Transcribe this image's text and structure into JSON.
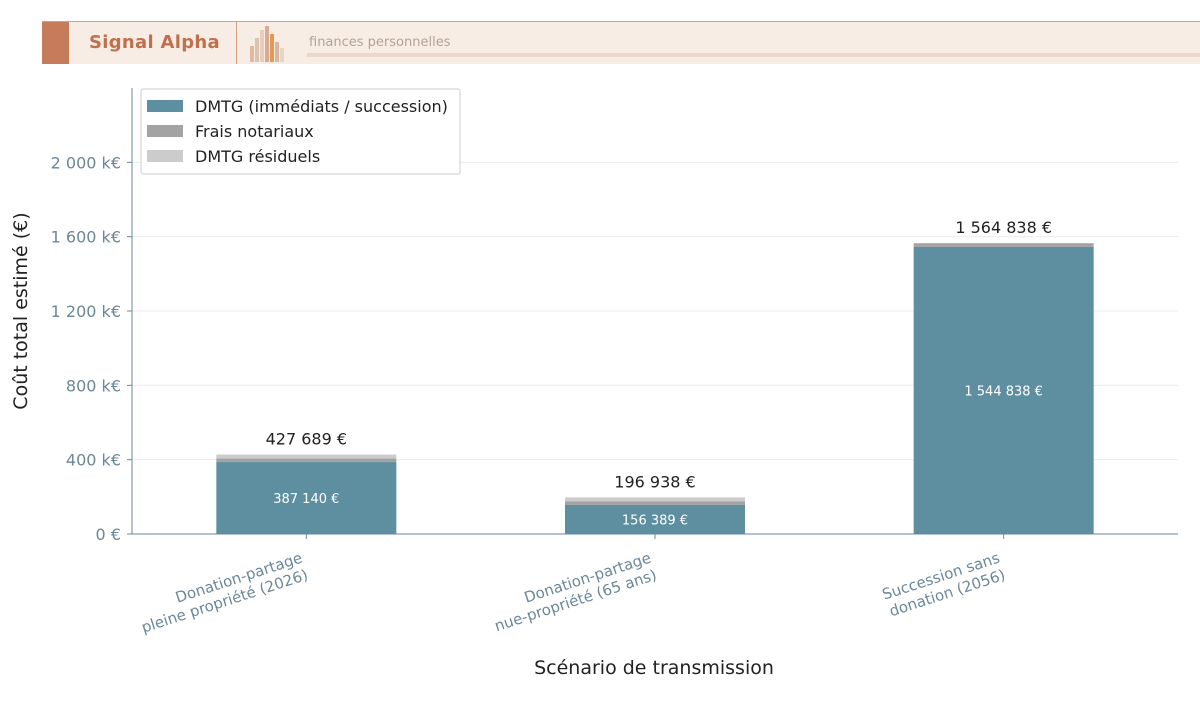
{
  "brand": {
    "name": "Signal Alpha",
    "tagline": "finances personnelles",
    "colors": {
      "accent": "#c67c5b",
      "band": "#f8ede4"
    }
  },
  "chart_data": {
    "type": "bar",
    "stacked": true,
    "title": "",
    "xlabel": "Scénario de transmission",
    "ylabel": "Coût total estimé (€)",
    "ylim": [
      0,
      2400000
    ],
    "yticks": [
      0,
      400000,
      800000,
      1200000,
      1600000,
      2000000
    ],
    "ytick_labels": [
      "0 €",
      "400 k€",
      "800 k€",
      "1 200 k€",
      "1 600 k€",
      "2 000 k€"
    ],
    "grid": true,
    "legend_position": "top-left",
    "categories": [
      [
        "Donation-partage",
        "pleine propriété (2026)"
      ],
      [
        "Donation-partage",
        "nue-propriété (65 ans)"
      ],
      [
        "Succession sans",
        "donation (2056)"
      ]
    ],
    "series": [
      {
        "name": "DMTG (immédiats / succession)",
        "color": "#5e8fa0",
        "values": [
          387140,
          156389,
          1544838
        ]
      },
      {
        "name": "Frais notariaux",
        "color": "#a3a3a3",
        "values": [
          20000,
          20000,
          20000
        ]
      },
      {
        "name": "DMTG résiduels",
        "color": "#cccccc",
        "values": [
          20549,
          20549,
          0
        ]
      }
    ],
    "totals": [
      427689,
      196938,
      1564838
    ],
    "total_labels": [
      "427 689 €",
      "196 938 €",
      "1 564 838 €"
    ],
    "inner_labels": [
      "387 140 €",
      "156 389 €",
      "1 544 838 €"
    ]
  }
}
